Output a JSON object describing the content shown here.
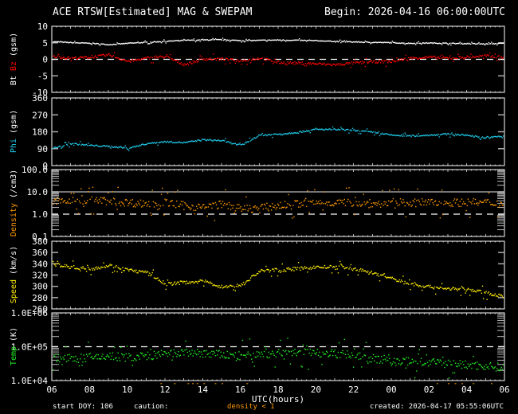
{
  "header": {
    "title": "ACE RTSW[Estimated] MAG & SWEPAM",
    "begin": "Begin: 2026-04-16 06:00:00UTC"
  },
  "footer": {
    "start_doy": "start DOY: 106",
    "caution": "caution:",
    "density_note": "density < 1",
    "created": "created: 2026-04-17 05:55:06UTC",
    "xaxis_label": "UTC(hours)"
  },
  "colors": {
    "bt": "#ffffff",
    "bz": "#ff0000",
    "phi": "#1ec8e6",
    "density": "#ff9a00",
    "speed": "#ffee00",
    "temp": "#22ee22",
    "frame": "#ffffff"
  },
  "chart_data": [
    {
      "type": "scatter",
      "title": "Bt / Bz (gsm)",
      "ylabel": "Bt Bz (gsm)",
      "ylim": [
        -10,
        10
      ],
      "yticks": [
        "10",
        "5",
        "0",
        "-5",
        "-10"
      ],
      "x": [
        "06",
        "07",
        "08",
        "09",
        "10",
        "11",
        "12",
        "13",
        "14",
        "15",
        "16",
        "17",
        "18",
        "19",
        "20",
        "21",
        "22",
        "23",
        "00",
        "01",
        "02",
        "03",
        "04",
        "05",
        "06"
      ],
      "series": [
        {
          "name": "Bt",
          "values": [
            5.5,
            5.2,
            5.0,
            4.6,
            5.0,
            5.3,
            5.6,
            5.9,
            6.0,
            6.1,
            5.8,
            5.9,
            6.0,
            5.9,
            5.8,
            5.6,
            5.4,
            5.3,
            5.2,
            5.0,
            5.1,
            5.0,
            4.9,
            4.8,
            5.0
          ]
        },
        {
          "name": "Bz",
          "values": [
            1.0,
            0.5,
            0.8,
            1.5,
            -0.5,
            0.5,
            1.0,
            -1.5,
            0.3,
            0.2,
            -0.3,
            0.5,
            -0.8,
            -1.0,
            -1.2,
            -1.5,
            -1.0,
            -0.6,
            -0.5,
            0.5,
            0.8,
            0.5,
            0.8,
            1.2,
            0.8
          ]
        }
      ],
      "reference_lines": [
        0
      ]
    },
    {
      "type": "scatter",
      "title": "Phi (gsm)",
      "ylabel": "Phi (gsm)",
      "ylim": [
        0,
        360
      ],
      "yticks": [
        "360",
        "270",
        "180",
        "90",
        "0"
      ],
      "series": [
        {
          "name": "Phi",
          "values": [
            95,
            120,
            110,
            105,
            95,
            120,
            130,
            125,
            140,
            135,
            110,
            165,
            170,
            180,
            195,
            195,
            190,
            180,
            165,
            160,
            165,
            170,
            165,
            150,
            160
          ]
        }
      ]
    },
    {
      "type": "scatter",
      "title": "Density (/cm3)",
      "ylabel": "Density (/cm3)",
      "yscale": "log",
      "ylim": [
        0.1,
        100.0
      ],
      "yticks": [
        "100.0",
        "10.0",
        "1.0",
        "0.1"
      ],
      "series": [
        {
          "name": "Density",
          "values": [
            4.0,
            4.0,
            4.5,
            4.0,
            3.5,
            3.0,
            3.5,
            2.5,
            2.0,
            3.0,
            1.8,
            2.0,
            2.5,
            3.0,
            3.5,
            3.5,
            3.5,
            3.0,
            3.5,
            3.5,
            3.5,
            3.5,
            3.5,
            3.5,
            3.0
          ]
        }
      ],
      "reference_lines": [
        1.0,
        10.0
      ],
      "annotation": "density < 1 caution markers"
    },
    {
      "type": "scatter",
      "title": "Speed (km/s)",
      "ylabel": "Speed (km/s)",
      "ylim": [
        260,
        380
      ],
      "yticks": [
        "380",
        "360",
        "340",
        "320",
        "300",
        "280",
        "260"
      ],
      "series": [
        {
          "name": "Speed",
          "values": [
            340,
            335,
            332,
            338,
            330,
            325,
            305,
            308,
            310,
            300,
            302,
            328,
            330,
            332,
            335,
            335,
            332,
            325,
            315,
            305,
            300,
            297,
            295,
            290,
            283
          ]
        }
      ]
    },
    {
      "type": "scatter",
      "title": "Temp (K)",
      "ylabel": "Temp (K)",
      "yscale": "log",
      "ylim": [
        10000,
        1000000
      ],
      "yticks": [
        "1.0E+06",
        "1.0E+05",
        "1.0E+04"
      ],
      "series": [
        {
          "name": "Temp",
          "values": [
            50000,
            45000,
            50000,
            55000,
            50000,
            55000,
            60000,
            70000,
            65000,
            60000,
            55000,
            60000,
            65000,
            70000,
            70000,
            65000,
            60000,
            45000,
            38000,
            38000,
            35000,
            33000,
            30000,
            28000,
            25000
          ]
        }
      ],
      "reference_lines": [
        100000
      ]
    }
  ],
  "xaxis": {
    "ticks": [
      "06",
      "08",
      "10",
      "12",
      "14",
      "16",
      "18",
      "20",
      "22",
      "00",
      "02",
      "04",
      "06"
    ],
    "label": "UTC(hours)"
  }
}
